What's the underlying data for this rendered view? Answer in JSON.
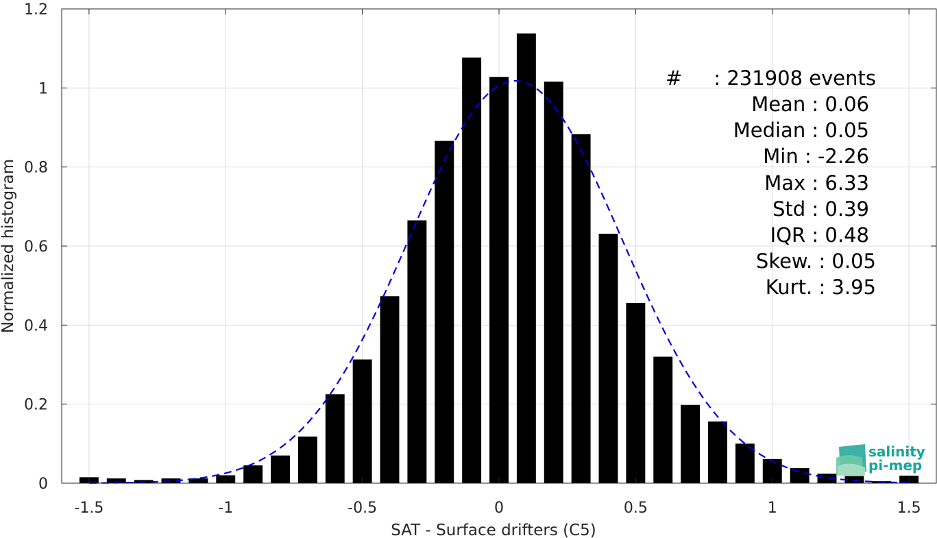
{
  "chart_data": {
    "type": "bar",
    "xlabel": "SAT - Surface drifters (C5)",
    "ylabel": "Normalized histogram",
    "xlim": [
      -1.6,
      1.6
    ],
    "ylim": [
      0,
      1.2
    ],
    "xticks": [
      -1.5,
      -1,
      -0.5,
      0,
      0.5,
      1,
      1.5
    ],
    "xtick_labels": [
      "-1.5",
      "-1",
      "-0.5",
      "0",
      "0.5",
      "1",
      "1.5"
    ],
    "yticks": [
      0,
      0.2,
      0.4,
      0.6,
      0.8,
      1,
      1.2
    ],
    "ytick_labels": [
      "0",
      "0.2",
      "0.4",
      "0.6",
      "0.8",
      "1",
      "1.2"
    ],
    "grid": true,
    "bar_color": "#000000",
    "fit_color": "#0000dd",
    "bins": {
      "x": [
        -1.5,
        -1.4,
        -1.3,
        -1.2,
        -1.1,
        -1.0,
        -0.9,
        -0.8,
        -0.7,
        -0.6,
        -0.5,
        -0.4,
        -0.3,
        -0.2,
        -0.1,
        0.0,
        0.1,
        0.2,
        0.3,
        0.4,
        0.5,
        0.6,
        0.7,
        0.8,
        0.9,
        1.0,
        1.1,
        1.2,
        1.3,
        1.4,
        1.5
      ],
      "values": [
        0.015,
        0.012,
        0.008,
        0.012,
        0.012,
        0.02,
        0.045,
        0.07,
        0.118,
        0.225,
        0.313,
        0.473,
        0.665,
        0.866,
        1.077,
        1.028,
        1.138,
        1.016,
        0.883,
        0.631,
        0.456,
        0.32,
        0.198,
        0.156,
        0.1,
        0.061,
        0.038,
        0.024,
        0.018,
        0.005,
        0.019
      ],
      "bar_width": 0.07
    },
    "fit": {
      "style": "dashed",
      "mean": 0.06,
      "std": 0.39,
      "peak": 1.018
    }
  },
  "stats": [
    {
      "label": "#",
      "sep": ":",
      "value": "231908 events"
    },
    {
      "label": "Mean",
      "sep": ":",
      "value": "0.06"
    },
    {
      "label": "Median",
      "sep": ":",
      "value": "0.05"
    },
    {
      "label": "Min",
      "sep": ":",
      "value": "-2.26"
    },
    {
      "label": "Max",
      "sep": ":",
      "value": "6.33"
    },
    {
      "label": "Std",
      "sep": ":",
      "value": "0.39"
    },
    {
      "label": "IQR",
      "sep": ":",
      "value": "0.48"
    },
    {
      "label": "Skew.",
      "sep": ":",
      "value": "0.05"
    },
    {
      "label": "Kurt.",
      "sep": ":",
      "value": "3.95"
    }
  ],
  "logo": {
    "line1": "salinity",
    "line2": "pi-mep",
    "color": "#1aa59a"
  }
}
